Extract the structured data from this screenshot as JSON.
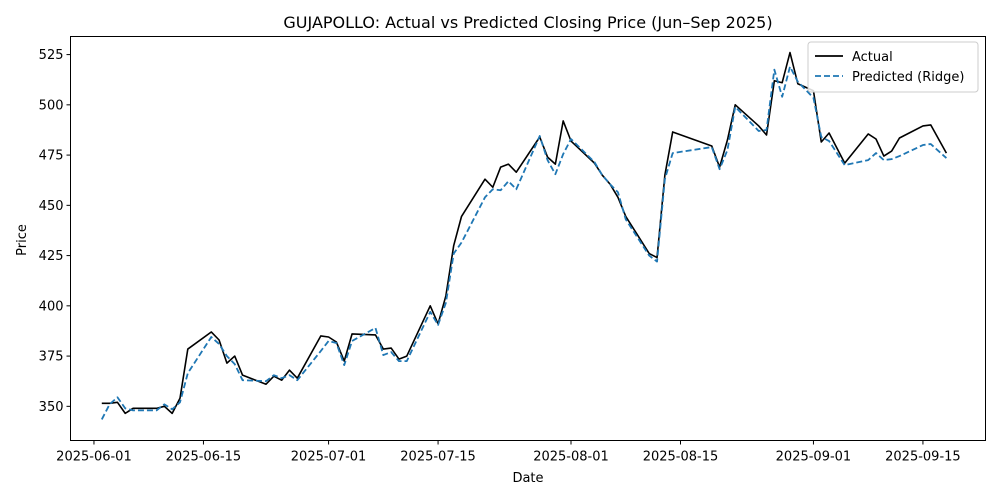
{
  "chart_data": {
    "type": "line",
    "title": "GUJAPOLLO: Actual vs Predicted Closing Price (Jun–Sep 2025)",
    "xlabel": "Date",
    "ylabel": "Price",
    "x_tick_labels": [
      "2025-06-01",
      "2025-06-15",
      "2025-07-01",
      "2025-07-15",
      "2025-08-01",
      "2025-08-15",
      "2025-09-01",
      "2025-09-15"
    ],
    "x_ticks": [
      "2025-06-01",
      "2025-06-15",
      "2025-07-01",
      "2025-07-15",
      "2025-08-01",
      "2025-08-15",
      "2025-09-01",
      "2025-09-15"
    ],
    "y_ticks": [
      350,
      375,
      400,
      425,
      450,
      475,
      500,
      525
    ],
    "xlim": [
      "2025-05-29",
      "2025-09-23"
    ],
    "ylim": [
      333,
      534
    ],
    "grid": false,
    "legend_position": "upper right",
    "series": [
      {
        "name": "Actual",
        "color": "#000000",
        "style": "solid",
        "points": [
          [
            "2025-06-02",
            351.5
          ],
          [
            "2025-06-03",
            351.5
          ],
          [
            "2025-06-04",
            352
          ],
          [
            "2025-06-05",
            346.5
          ],
          [
            "2025-06-06",
            349
          ],
          [
            "2025-06-09",
            349
          ],
          [
            "2025-06-10",
            350
          ],
          [
            "2025-06-11",
            346.5
          ],
          [
            "2025-06-12",
            354
          ],
          [
            "2025-06-13",
            378.5
          ],
          [
            "2025-06-16",
            387
          ],
          [
            "2025-06-17",
            383
          ],
          [
            "2025-06-18",
            371.5
          ],
          [
            "2025-06-19",
            375
          ],
          [
            "2025-06-20",
            365.5
          ],
          [
            "2025-06-23",
            361
          ],
          [
            "2025-06-24",
            365
          ],
          [
            "2025-06-25",
            363
          ],
          [
            "2025-06-26",
            368
          ],
          [
            "2025-06-27",
            364
          ],
          [
            "2025-06-30",
            385
          ],
          [
            "2025-07-01",
            384.5
          ],
          [
            "2025-07-02",
            382
          ],
          [
            "2025-07-03",
            372.5
          ],
          [
            "2025-07-04",
            386
          ],
          [
            "2025-07-07",
            385.5
          ],
          [
            "2025-07-08",
            378.5
          ],
          [
            "2025-07-09",
            379
          ],
          [
            "2025-07-10",
            373.5
          ],
          [
            "2025-07-11",
            375
          ],
          [
            "2025-07-14",
            400
          ],
          [
            "2025-07-15",
            391
          ],
          [
            "2025-07-16",
            405
          ],
          [
            "2025-07-17",
            430
          ],
          [
            "2025-07-18",
            444.5
          ],
          [
            "2025-07-21",
            463
          ],
          [
            "2025-07-22",
            459
          ],
          [
            "2025-07-23",
            469
          ],
          [
            "2025-07-24",
            470.5
          ],
          [
            "2025-07-25",
            466.5
          ],
          [
            "2025-07-28",
            484
          ],
          [
            "2025-07-29",
            474
          ],
          [
            "2025-07-30",
            470.5
          ],
          [
            "2025-07-31",
            492
          ],
          [
            "2025-08-01",
            482
          ],
          [
            "2025-08-04",
            471
          ],
          [
            "2025-08-05",
            465
          ],
          [
            "2025-08-06",
            460.5
          ],
          [
            "2025-08-07",
            454
          ],
          [
            "2025-08-08",
            444.5
          ],
          [
            "2025-08-11",
            426
          ],
          [
            "2025-08-12",
            424
          ],
          [
            "2025-08-13",
            465
          ],
          [
            "2025-08-14",
            486.5
          ],
          [
            "2025-08-19",
            479.5
          ],
          [
            "2025-08-20",
            469
          ],
          [
            "2025-08-21",
            482.5
          ],
          [
            "2025-08-22",
            500
          ],
          [
            "2025-08-25",
            489.5
          ],
          [
            "2025-08-26",
            485
          ],
          [
            "2025-08-27",
            512
          ],
          [
            "2025-08-28",
            511
          ],
          [
            "2025-08-29",
            526
          ],
          [
            "2025-08-30",
            510.5
          ],
          [
            "2025-09-01",
            507
          ],
          [
            "2025-09-02",
            481.5
          ],
          [
            "2025-09-03",
            486
          ],
          [
            "2025-09-05",
            471
          ],
          [
            "2025-09-08",
            485.5
          ],
          [
            "2025-09-09",
            483
          ],
          [
            "2025-09-10",
            474.5
          ],
          [
            "2025-09-11",
            477
          ],
          [
            "2025-09-12",
            483.5
          ],
          [
            "2025-09-15",
            489.5
          ],
          [
            "2025-09-16",
            490
          ],
          [
            "2025-09-18",
            476
          ]
        ]
      },
      {
        "name": "Predicted (Ridge)",
        "color": "#1f77b4",
        "style": "dashed",
        "points": [
          [
            "2025-06-02",
            343.5
          ],
          [
            "2025-06-03",
            351
          ],
          [
            "2025-06-04",
            354.5
          ],
          [
            "2025-06-05",
            349
          ],
          [
            "2025-06-06",
            348
          ],
          [
            "2025-06-09",
            348
          ],
          [
            "2025-06-10",
            351
          ],
          [
            "2025-06-11",
            348.5
          ],
          [
            "2025-06-12",
            352
          ],
          [
            "2025-06-13",
            366.5
          ],
          [
            "2025-06-16",
            384.5
          ],
          [
            "2025-06-17",
            381
          ],
          [
            "2025-06-18",
            375
          ],
          [
            "2025-06-19",
            371
          ],
          [
            "2025-06-20",
            363
          ],
          [
            "2025-06-23",
            362.5
          ],
          [
            "2025-06-24",
            365.5
          ],
          [
            "2025-06-25",
            364
          ],
          [
            "2025-06-26",
            365.5
          ],
          [
            "2025-06-27",
            363
          ],
          [
            "2025-06-30",
            377.5
          ],
          [
            "2025-07-01",
            382.5
          ],
          [
            "2025-07-02",
            381.5
          ],
          [
            "2025-07-03",
            370.5
          ],
          [
            "2025-07-04",
            382.5
          ],
          [
            "2025-07-07",
            389
          ],
          [
            "2025-07-08",
            375.5
          ],
          [
            "2025-07-09",
            377
          ],
          [
            "2025-07-10",
            372.5
          ],
          [
            "2025-07-11",
            372.5
          ],
          [
            "2025-07-14",
            397
          ],
          [
            "2025-07-15",
            390.5
          ],
          [
            "2025-07-16",
            401.5
          ],
          [
            "2025-07-17",
            426
          ],
          [
            "2025-07-18",
            431.5
          ],
          [
            "2025-07-21",
            454
          ],
          [
            "2025-07-22",
            458
          ],
          [
            "2025-07-23",
            457.5
          ],
          [
            "2025-07-24",
            462
          ],
          [
            "2025-07-25",
            458
          ],
          [
            "2025-07-28",
            484.5
          ],
          [
            "2025-07-29",
            472.5
          ],
          [
            "2025-07-30",
            465.5
          ],
          [
            "2025-07-31",
            475.5
          ],
          [
            "2025-08-01",
            483
          ],
          [
            "2025-08-04",
            471.5
          ],
          [
            "2025-08-05",
            465
          ],
          [
            "2025-08-06",
            460.5
          ],
          [
            "2025-08-07",
            456.5
          ],
          [
            "2025-08-08",
            443
          ],
          [
            "2025-08-11",
            425
          ],
          [
            "2025-08-12",
            422
          ],
          [
            "2025-08-13",
            463
          ],
          [
            "2025-08-14",
            476
          ],
          [
            "2025-08-19",
            479
          ],
          [
            "2025-08-20",
            468
          ],
          [
            "2025-08-21",
            477.5
          ],
          [
            "2025-08-22",
            499
          ],
          [
            "2025-08-25",
            487
          ],
          [
            "2025-08-26",
            487.5
          ],
          [
            "2025-08-27",
            517.5
          ],
          [
            "2025-08-28",
            504
          ],
          [
            "2025-08-29",
            519
          ],
          [
            "2025-08-30",
            511.5
          ],
          [
            "2025-09-01",
            503.5
          ],
          [
            "2025-09-02",
            484
          ],
          [
            "2025-09-03",
            482
          ],
          [
            "2025-09-05",
            470
          ],
          [
            "2025-09-08",
            472.5
          ],
          [
            "2025-09-09",
            476
          ],
          [
            "2025-09-10",
            472.5
          ],
          [
            "2025-09-11",
            473
          ],
          [
            "2025-09-12",
            474.5
          ],
          [
            "2025-09-15",
            480
          ],
          [
            "2025-09-16",
            480.5
          ],
          [
            "2025-09-18",
            473.5
          ]
        ]
      }
    ]
  }
}
